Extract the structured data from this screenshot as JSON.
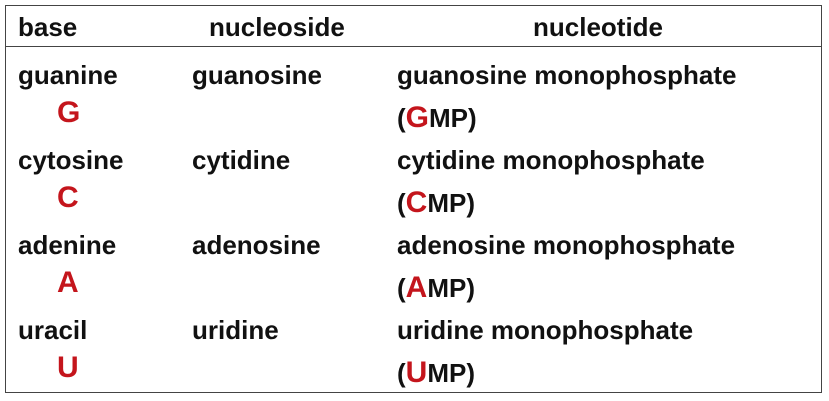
{
  "headers": {
    "base": "base",
    "nucleoside": "nucleoside",
    "nucleotide": "nucleotide"
  },
  "accent_color": "#c4151c",
  "rows": [
    {
      "base": "guanine",
      "letter": "G",
      "nucleoside": "guanosine",
      "nucleotide": "guanosine monophosphate",
      "abbr_open": "(",
      "abbr_letter": "G",
      "abbr_rest": "MP)"
    },
    {
      "base": "cytosine",
      "letter": "C",
      "nucleoside": "cytidine",
      "nucleotide": "cytidine monophosphate",
      "abbr_open": "(",
      "abbr_letter": "C",
      "abbr_rest": "MP)"
    },
    {
      "base": "adenine",
      "letter": "A",
      "nucleoside": "adenosine",
      "nucleotide": "adenosine monophosphate",
      "abbr_open": "(",
      "abbr_letter": "A",
      "abbr_rest": "MP)"
    },
    {
      "base": "uracil",
      "letter": "U",
      "nucleoside": "uridine",
      "nucleotide": "uridine monophosphate",
      "abbr_open": "(",
      "abbr_letter": "U",
      "abbr_rest": "MP)"
    }
  ]
}
